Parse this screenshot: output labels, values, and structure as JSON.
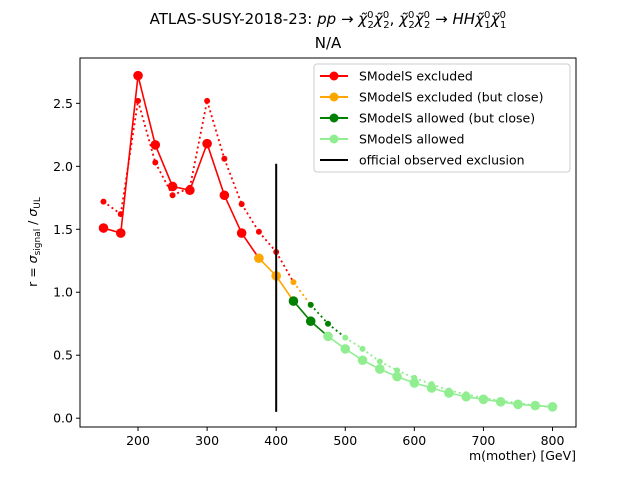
{
  "chart_data": {
    "type": "line",
    "title": "ATLAS-SUSY-2018-23: pp → χ̃⁰₂χ̃⁰₂, χ̃⁰₂χ̃⁰₂ → HHχ̃⁰₁χ̃⁰₁",
    "title_parts": {
      "prefix": "ATLAS-SUSY-2018-23: ",
      "process": "pp → χ̃",
      "full_italic": "pp→χ̃⁰₂χ̃⁰₂, χ̃⁰₂χ̃⁰₂→HHχ̃⁰₁χ̃⁰₁"
    },
    "subtitle": "N/A",
    "xlabel": "m(mother) [GeV]",
    "ylabel": "r = σ_signal / σ_UL",
    "ylabel_parts": {
      "prefix": "r = σ",
      "sub1": "signal",
      "mid": " / σ",
      "sub2": "UL"
    },
    "xlim": [
      116,
      834
    ],
    "ylim": [
      -0.07,
      2.86
    ],
    "xticks": [
      200,
      300,
      400,
      500,
      600,
      700,
      800
    ],
    "xtick_labels": [
      "200",
      "300",
      "400",
      "500",
      "600",
      "700",
      "800"
    ],
    "yticks": [
      0.0,
      0.5,
      1.0,
      1.5,
      2.0,
      2.5
    ],
    "ytick_labels": [
      "0.0",
      "0.5",
      "1.0",
      "1.5",
      "2.0",
      "2.5"
    ],
    "grid": false,
    "legend_position": "top-right",
    "legend": [
      {
        "label": "SModelS excluded",
        "color": "#ff0000",
        "marker": true
      },
      {
        "label": "SModelS excluded (but close)",
        "color": "#ffa500",
        "marker": true
      },
      {
        "label": "SModelS allowed (but close)",
        "color": "#008000",
        "marker": true
      },
      {
        "label": "SModelS allowed",
        "color": "#90ee90",
        "marker": true
      },
      {
        "label": "official observed exclusion",
        "color": "#000000",
        "marker": false
      }
    ],
    "series_solid": [
      {
        "x": 150,
        "y": 1.51,
        "cat": "excluded"
      },
      {
        "x": 175,
        "y": 1.47,
        "cat": "excluded"
      },
      {
        "x": 200,
        "y": 2.72,
        "cat": "excluded"
      },
      {
        "x": 225,
        "y": 2.17,
        "cat": "excluded"
      },
      {
        "x": 250,
        "y": 1.84,
        "cat": "excluded"
      },
      {
        "x": 275,
        "y": 1.81,
        "cat": "excluded"
      },
      {
        "x": 300,
        "y": 2.18,
        "cat": "excluded"
      },
      {
        "x": 325,
        "y": 1.77,
        "cat": "excluded"
      },
      {
        "x": 350,
        "y": 1.47,
        "cat": "excluded"
      },
      {
        "x": 375,
        "y": 1.27,
        "cat": "excluded_close"
      },
      {
        "x": 400,
        "y": 1.13,
        "cat": "excluded_close"
      },
      {
        "x": 425,
        "y": 0.93,
        "cat": "allowed_close"
      },
      {
        "x": 450,
        "y": 0.77,
        "cat": "allowed_close"
      },
      {
        "x": 475,
        "y": 0.65,
        "cat": "allowed"
      },
      {
        "x": 500,
        "y": 0.55,
        "cat": "allowed"
      },
      {
        "x": 525,
        "y": 0.46,
        "cat": "allowed"
      },
      {
        "x": 550,
        "y": 0.39,
        "cat": "allowed"
      },
      {
        "x": 575,
        "y": 0.33,
        "cat": "allowed"
      },
      {
        "x": 600,
        "y": 0.28,
        "cat": "allowed"
      },
      {
        "x": 625,
        "y": 0.24,
        "cat": "allowed"
      },
      {
        "x": 650,
        "y": 0.2,
        "cat": "allowed"
      },
      {
        "x": 675,
        "y": 0.17,
        "cat": "allowed"
      },
      {
        "x": 700,
        "y": 0.15,
        "cat": "allowed"
      },
      {
        "x": 725,
        "y": 0.13,
        "cat": "allowed"
      },
      {
        "x": 750,
        "y": 0.11,
        "cat": "allowed"
      },
      {
        "x": 775,
        "y": 0.1,
        "cat": "allowed"
      },
      {
        "x": 800,
        "y": 0.09,
        "cat": "allowed"
      }
    ],
    "series_dotted": [
      {
        "x": 150,
        "y": 1.72,
        "cat": "excluded"
      },
      {
        "x": 175,
        "y": 1.62,
        "cat": "excluded"
      },
      {
        "x": 200,
        "y": 2.52,
        "cat": "excluded"
      },
      {
        "x": 225,
        "y": 2.03,
        "cat": "excluded"
      },
      {
        "x": 250,
        "y": 1.77,
        "cat": "excluded"
      },
      {
        "x": 275,
        "y": 1.83,
        "cat": "excluded"
      },
      {
        "x": 300,
        "y": 2.52,
        "cat": "excluded"
      },
      {
        "x": 325,
        "y": 2.06,
        "cat": "excluded"
      },
      {
        "x": 350,
        "y": 1.7,
        "cat": "excluded"
      },
      {
        "x": 375,
        "y": 1.48,
        "cat": "excluded"
      },
      {
        "x": 400,
        "y": 1.32,
        "cat": "excluded"
      },
      {
        "x": 425,
        "y": 1.08,
        "cat": "excluded_close"
      },
      {
        "x": 450,
        "y": 0.9,
        "cat": "allowed_close"
      },
      {
        "x": 475,
        "y": 0.75,
        "cat": "allowed_close"
      },
      {
        "x": 500,
        "y": 0.64,
        "cat": "allowed"
      },
      {
        "x": 525,
        "y": 0.55,
        "cat": "allowed"
      },
      {
        "x": 550,
        "y": 0.45,
        "cat": "allowed"
      },
      {
        "x": 575,
        "y": 0.38,
        "cat": "allowed"
      },
      {
        "x": 600,
        "y": 0.32,
        "cat": "allowed"
      },
      {
        "x": 625,
        "y": 0.27,
        "cat": "allowed"
      },
      {
        "x": 650,
        "y": 0.22,
        "cat": "allowed"
      },
      {
        "x": 675,
        "y": 0.19,
        "cat": "allowed"
      },
      {
        "x": 700,
        "y": 0.16,
        "cat": "allowed"
      },
      {
        "x": 725,
        "y": 0.14,
        "cat": "allowed"
      },
      {
        "x": 750,
        "y": 0.12,
        "cat": "allowed"
      },
      {
        "x": 775,
        "y": 0.1,
        "cat": "allowed"
      },
      {
        "x": 800,
        "y": 0.09,
        "cat": "allowed"
      }
    ],
    "official_exclusion": {
      "x": 400,
      "y_range": [
        0.05,
        2.02
      ],
      "color": "#000000"
    },
    "category_colors": {
      "excluded": "#ff0000",
      "excluded_close": "#ffa500",
      "allowed_close": "#008000",
      "allowed": "#90ee90"
    }
  }
}
